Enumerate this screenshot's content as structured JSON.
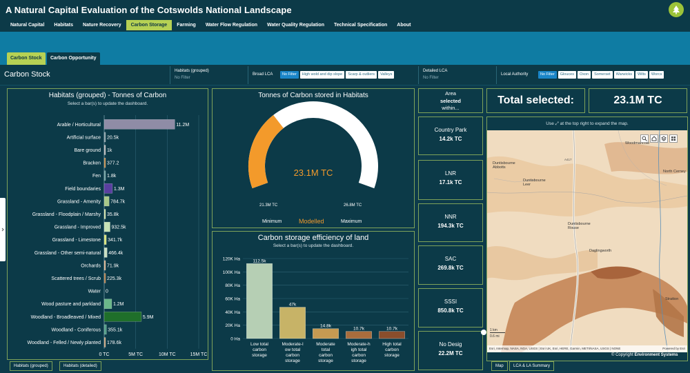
{
  "header": {
    "title": "A Natural Capital Evaluation of the Cotswolds National Landscape",
    "nav": [
      "Natural Capital",
      "Habitats",
      "Nature Recovery",
      "Carbon Storage",
      "Farming",
      "Water Flow Regulation",
      "Water Quality Regulation",
      "Technical Specification",
      "About"
    ],
    "active_nav": "Carbon Storage"
  },
  "subtabs": [
    "Carbon Stock",
    "Carbon Opportunity"
  ],
  "page_title": "Carbon Stock",
  "filters": {
    "habitats_label": "Habitats (grouped)",
    "habitats_value": "No Filter",
    "broad_lca_label": "Broad LCA",
    "broad_lca_options": [
      "No Filter",
      "High wold and dip slope",
      "Scarp & outliers",
      "Valleys"
    ],
    "detailed_lca_label": "Detailed LCA",
    "detailed_lca_value": "No Filter",
    "la_label": "Local Authority",
    "la_options": [
      "No Filter",
      "Glouces",
      "Oxon",
      "Somerset",
      "Warwicks",
      "Wilts",
      "Worcs"
    ]
  },
  "habitats_panel": {
    "title": "Habitats (grouped) - Tonnes of Carbon",
    "subtitle": "Select a bar(s) to update the dashboard.",
    "bottom_tabs": [
      "Habitats (grouped)",
      "Habitats (detailed)"
    ]
  },
  "gauge_panel": {
    "title": "Tonnes of Carbon stored in Habitats",
    "center_value": "23.1M TC",
    "min_value": "21.3M TC",
    "max_value": "26.8M TC",
    "min_label": "Minimum",
    "mid_label": "Modelled",
    "max_label": "Maximum"
  },
  "efficiency_panel": {
    "title": "Carbon storage efficiency of land",
    "subtitle": "Select a bar(s) to update the dashboard."
  },
  "area_card": {
    "line1": "Area",
    "line2": "selected",
    "line3": "within..."
  },
  "designations": [
    {
      "label": "Country Park",
      "value": "14.2k TC"
    },
    {
      "label": "LNR",
      "value": "17.1k TC"
    },
    {
      "label": "NNR",
      "value": "194.3k TC"
    },
    {
      "label": "SAC",
      "value": "269.8k TC"
    },
    {
      "label": "SSSI",
      "value": "850.8k TC"
    },
    {
      "label": "No Desig",
      "value": "22.2M TC"
    }
  ],
  "total": {
    "label": "Total selected:",
    "value": "23.1M TC"
  },
  "map": {
    "hint": "Use ⤢ at the top right to expand the map.",
    "places": [
      "Duntisbourne Abbotts",
      "Duntisbourne Leer",
      "Duntisbourne Rouse",
      "Daglingworth",
      "Woodmancote",
      "North Cerney",
      "Stratton",
      "A417"
    ],
    "scale_km": "1 km",
    "scale_mi": "0.6 mi",
    "attribution": "Esri, Intermap, NASA, NGA, USGS | Esri UK, Esri, HERE, Garmin, METI/NASA, USGS | NONE",
    "powered": "Powered by Esri",
    "copyright": "© Copyright",
    "copyright_org": "Environment Systems",
    "bottom_tabs": [
      "Map",
      "LCA & LA Summary"
    ]
  },
  "colors": {
    "bg": "#0c3a48",
    "accent": "#b6d154",
    "band": "#0f7ca3",
    "gauge": "#f39a2b"
  },
  "chart_data": [
    {
      "type": "bar",
      "orientation": "horizontal",
      "title": "Habitats (grouped) - Tonnes of Carbon",
      "xlabel": "",
      "ylabel": "",
      "categories": [
        "Arable / Horticultural",
        "Artificial surface",
        "Bare ground",
        "Bracken",
        "Fen",
        "Field boundaries",
        "Grassland - Amenity",
        "Grassland - Floodplain / Marshy",
        "Grassland - Improved",
        "Grassland - Limestone",
        "Grassland - Other semi-natural",
        "Orchards",
        "Scattered trees / Scrub",
        "Water",
        "Wood pasture and parkland",
        "Woodland - Broadleaved / Mixed",
        "Woodland - Coniferous",
        "Woodland - Felled / Newly planted"
      ],
      "values": [
        11200000,
        20500,
        1000,
        377.2,
        1800,
        1300000,
        784700,
        35800,
        932500,
        341700,
        466400,
        71900,
        225300,
        0,
        1200000,
        5900000,
        355100,
        178600
      ],
      "data_labels": [
        "11.2M",
        "20.5k",
        "1k",
        "377.2",
        "1.8k",
        "1.3M",
        "784.7k",
        "35.8k",
        "932.5k",
        "341.7k",
        "466.4k",
        "71.9k",
        "225.3k",
        "0",
        "1.2M",
        "5.9M",
        "355.1k",
        "178.6k"
      ],
      "colors": [
        "#8f8ca6",
        "#8aa0a8",
        "#b8b8b8",
        "#c28a47",
        "#6fa0a0",
        "#5a3fa0",
        "#a8c889",
        "#cfe0a5",
        "#c7e2b5",
        "#d6e37d",
        "#c9dfc2",
        "#d7b08a",
        "#b8804a",
        "#4a7fb0",
        "#6bb88a",
        "#1f6f2a",
        "#56a08a",
        "#c9a27a"
      ],
      "xlim": [
        0,
        15000000
      ],
      "xticks": [
        "0 TC",
        "5M TC",
        "10M TC",
        "15M TC"
      ]
    },
    {
      "type": "gauge",
      "title": "Tonnes of Carbon stored in Habitats",
      "value": 23100000,
      "min": 21300000,
      "max": 26800000
    },
    {
      "type": "bar",
      "title": "Carbon storage efficiency of land",
      "xlabel": "",
      "ylabel": "",
      "categories": [
        "Low total carbon storage",
        "Moderate-low total carbon storage",
        "Moderate total carbon storage",
        "Moderate-high total carbon storage",
        "High total carbon storage"
      ],
      "category_lines": [
        [
          "Low total",
          "carbon",
          "storage"
        ],
        [
          "Moderate-l",
          "ow total",
          "carbon",
          "storage"
        ],
        [
          "Moderate",
          "total",
          "carbon",
          "storage"
        ],
        [
          "Moderate-h",
          "igh total",
          "carbon",
          "storage"
        ],
        [
          "High total",
          "carbon",
          "storage"
        ]
      ],
      "values": [
        112500,
        47000,
        14800,
        10700,
        10700
      ],
      "data_labels": [
        "112.5k",
        "47k",
        "14.8k",
        "10.7k",
        "10.7k"
      ],
      "colors": [
        "#b6cfb4",
        "#c7b367",
        "#c69a52",
        "#a96d3d",
        "#8a4e2c"
      ],
      "ylim": [
        0,
        120000
      ],
      "yticks": [
        "0 Ha",
        "20K Ha",
        "40K Ha",
        "60K Ha",
        "80K Ha",
        "100K Ha",
        "120K Ha"
      ]
    }
  ]
}
